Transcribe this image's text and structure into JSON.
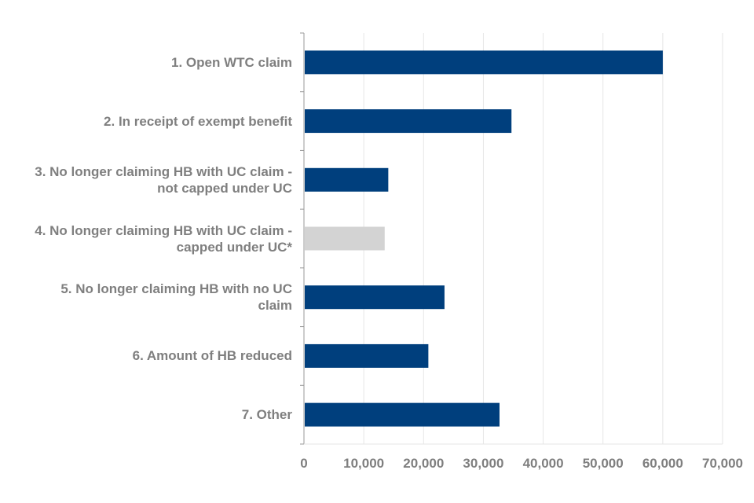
{
  "chart_data": {
    "type": "bar",
    "orientation": "horizontal",
    "title": "",
    "xlabel": "",
    "ylabel": "",
    "categories": [
      "1. Open WTC claim",
      "2. In receipt of exempt benefit",
      "3. No longer claiming HB with UC claim -\nnot capped under UC",
      "4. No longer claiming HB with UC claim -\ncapped under UC*",
      "5. No longer claiming HB with no UC\nclaim",
      "6. Amount of HB reduced",
      "7. Other"
    ],
    "values": [
      60000,
      34700,
      14100,
      13500,
      23500,
      20800,
      32700
    ],
    "bar_colors": [
      "#003f7d",
      "#003f7d",
      "#003f7d",
      "#d3d3d3",
      "#003f7d",
      "#003f7d",
      "#003f7d"
    ],
    "xlim": [
      0,
      70000
    ],
    "xticks": [
      0,
      10000,
      20000,
      30000,
      40000,
      50000,
      60000,
      70000
    ],
    "xtick_labels": [
      "0",
      "10,000",
      "20,000",
      "30,000",
      "40,000",
      "50,000",
      "60,000",
      "70,000"
    ],
    "grid": "vertical",
    "legend": "none",
    "colors": {
      "gridline": "#e6e6e6",
      "axis": "#999999",
      "label": "#7f7f7f"
    }
  }
}
